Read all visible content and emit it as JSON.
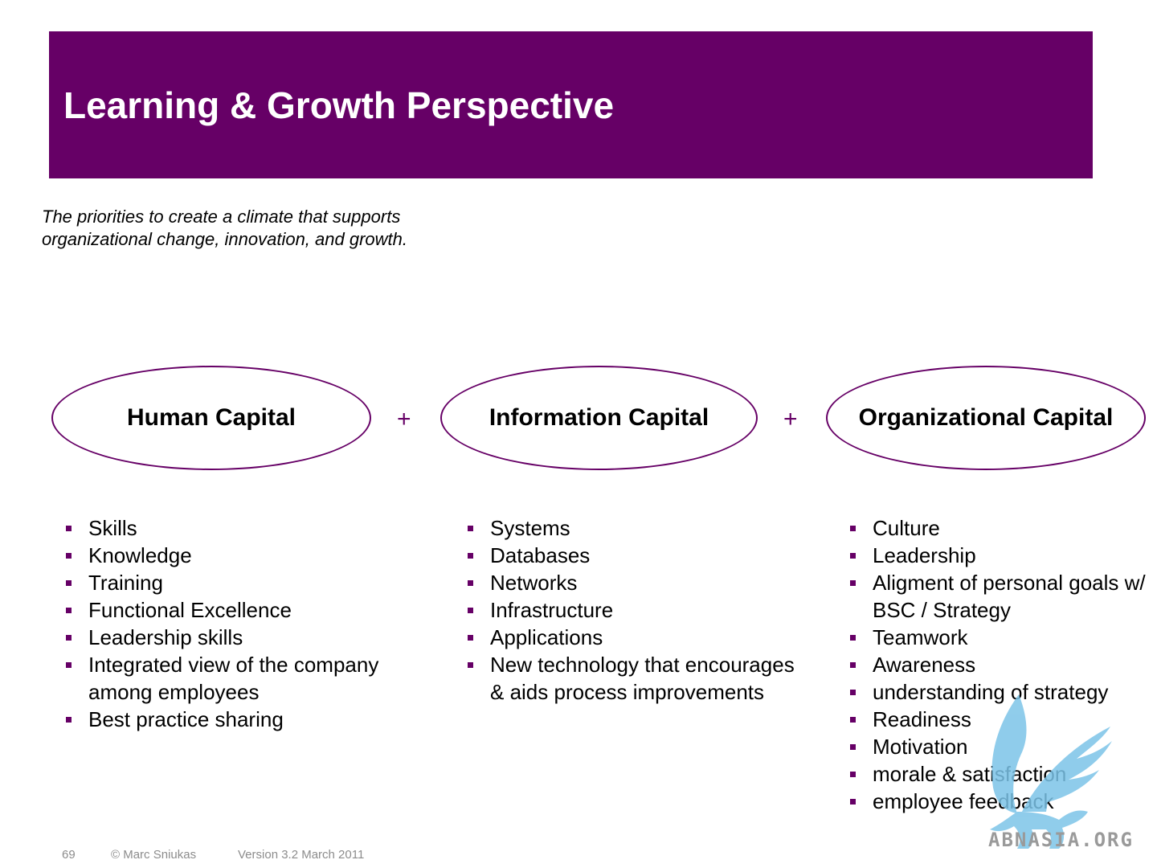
{
  "header": {
    "title": "Learning & Growth Perspective",
    "background_color": "#660066"
  },
  "subtitle": {
    "line1": "The priorities to create a climate that supports",
    "line2": "organizational change, innovation, and growth."
  },
  "capitals": [
    {
      "label": "Human Capital",
      "items": [
        "Skills",
        "Knowledge",
        "Training",
        "Functional Excellence",
        "Leadership skills",
        "Integrated view of the company among employees",
        "Best practice sharing"
      ]
    },
    {
      "label": "Information Capital",
      "items": [
        "Systems",
        "Databases",
        "Networks",
        "Infrastructure",
        "Applications",
        "New technology that encourages & aids process improvements"
      ]
    },
    {
      "label": "Organizational Capital",
      "items": [
        "Culture",
        "Leadership",
        "Aligment of personal goals w/ BSC / Strategy",
        "Teamwork",
        "Awareness",
        "understanding of strategy",
        "Readiness",
        "Motivation",
        "morale & satisfaction",
        "employee feedback"
      ]
    }
  ],
  "operators": [
    "+",
    "+"
  ],
  "footer": {
    "page_number": "69",
    "copyright": "© Marc Sniukas",
    "version": "Version 3.2 March 2011"
  },
  "watermark": {
    "text": "ABNASIA.ORG",
    "icon": "griffin-logo-icon",
    "color": "#7cc4e8"
  }
}
